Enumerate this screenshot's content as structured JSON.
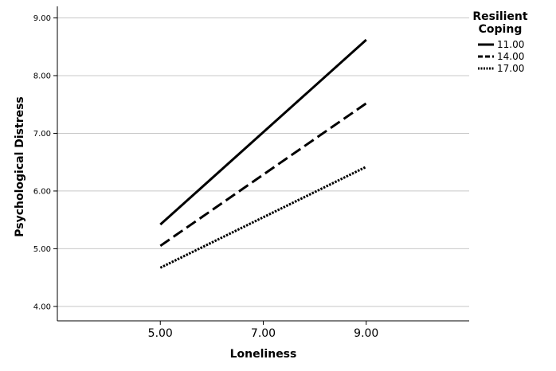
{
  "chart_data": {
    "type": "line",
    "xlabel": "Loneliness",
    "ylabel": "Psychological Distress",
    "x": [
      5.0,
      9.0
    ],
    "xlim": [
      3.0,
      11.0
    ],
    "ylim": [
      3.75,
      9.2
    ],
    "x_ticks": [
      "5.00",
      "7.00",
      "9.00"
    ],
    "x_tick_values": [
      5,
      7,
      9
    ],
    "y_ticks": [
      "4.00",
      "5.00",
      "6.00",
      "7.00",
      "8.00",
      "9.00"
    ],
    "y_tick_values": [
      4,
      5,
      6,
      7,
      8,
      9
    ],
    "grid": "horizontal",
    "legend": {
      "placement": "top-right",
      "title_line1": "Resilient",
      "title_line2": "Coping"
    },
    "series": [
      {
        "name": "11.00",
        "values": [
          5.42,
          8.62
        ],
        "style": "solid"
      },
      {
        "name": "14.00",
        "values": [
          5.05,
          7.52
        ],
        "style": "dashed"
      },
      {
        "name": "17.00",
        "values": [
          4.67,
          6.42
        ],
        "style": "dotted"
      }
    ],
    "colors": {
      "line": "#000000",
      "grid": "#c8c8c8",
      "axis": "#000000"
    }
  }
}
